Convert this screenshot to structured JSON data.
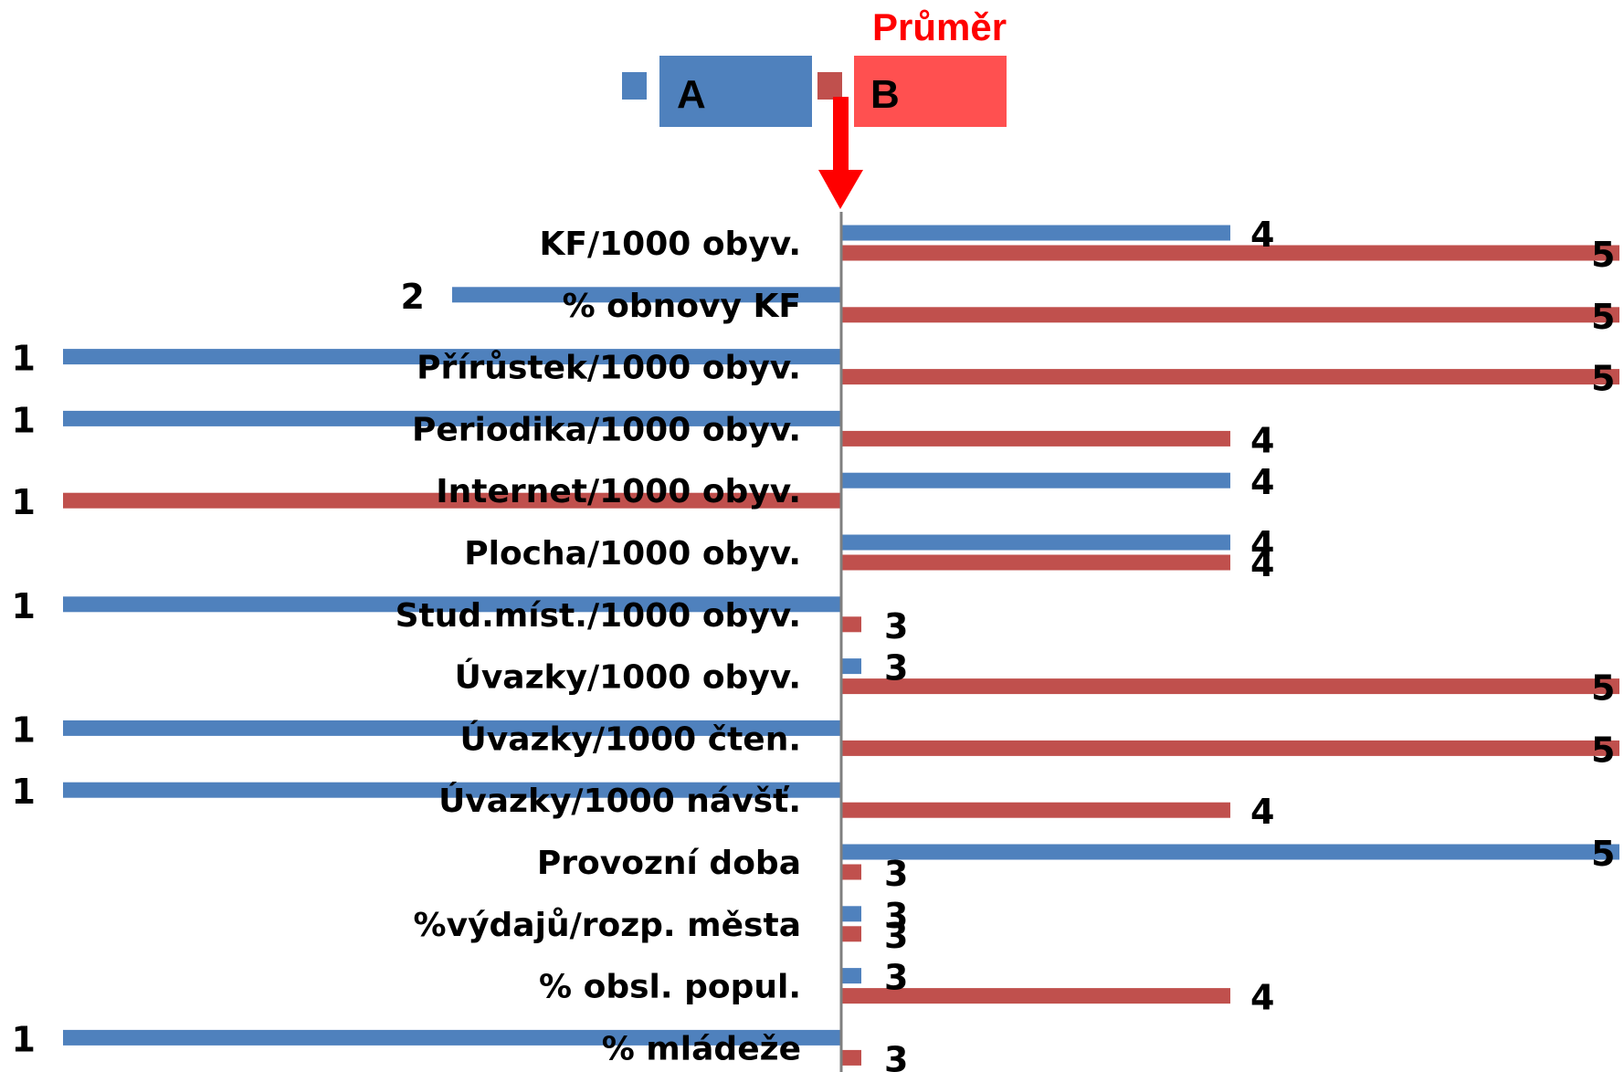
{
  "colors": {
    "series_a": "#4f81bd",
    "series_b": "#c0504d",
    "legend_box_b": "#ff5050",
    "arrow": "#ff0000",
    "axis": "#7f7f7f"
  },
  "annotation": {
    "label": "Průměr",
    "marker": "down-arrow"
  },
  "chart_data": {
    "type": "bar",
    "orientation": "horizontal",
    "baseline": 3,
    "xlim": [
      1,
      5
    ],
    "grid": false,
    "legend_position": "top",
    "categories": [
      "KF/1000 obyv.",
      "% obnovy KF",
      "Přírůstek/1000 obyv.",
      "Periodika/1000 obyv.",
      "Internet/1000 obyv.",
      "Plocha/1000 obyv.",
      "Stud.míst./1000 obyv.",
      "Úvazky/1000 obyv.",
      "Úvazky/1000 čten.",
      "Úvazky/1000 návšť.",
      "Provozní doba",
      "%výdajů/rozp. města",
      "% obsl. popul.",
      "% mládeže"
    ],
    "series": [
      {
        "name": "A",
        "color_key": "series_a",
        "values": [
          4,
          2,
          1,
          1,
          4,
          4,
          1,
          3,
          1,
          1,
          5,
          3,
          3,
          1
        ]
      },
      {
        "name": "B",
        "color_key": "series_b",
        "values": [
          5,
          5,
          5,
          4,
          1,
          4,
          3,
          5,
          5,
          4,
          3,
          3,
          4,
          3
        ]
      }
    ]
  }
}
